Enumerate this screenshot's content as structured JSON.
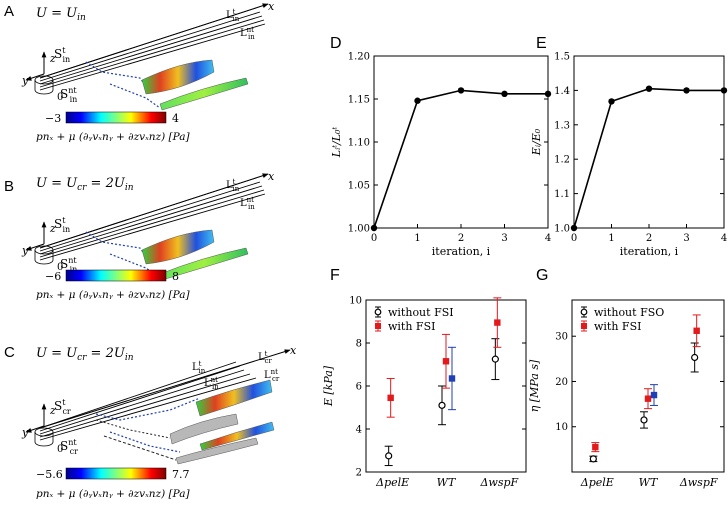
{
  "panels": {
    "A": {
      "letter": "A",
      "equation": "U = U",
      "equation_sub": "in",
      "label_top": "S",
      "label_top_sup": "t",
      "label_top_sub": "in",
      "label_bottom": "S",
      "label_bottom_sup": "nt",
      "label_bottom_sub": "in",
      "line_t": "L",
      "line_t_sup": "t",
      "line_t_sub": "in",
      "line_nt": "L",
      "line_nt_sup": "nt",
      "line_nt_sub": "in",
      "cbar_min": "−3",
      "cbar_max": "4"
    },
    "B": {
      "letter": "B",
      "equation": "U = U",
      "equation_sub": "cr",
      "equation_rest": " = 2U",
      "equation_rest_sub": "in",
      "label_top": "S",
      "label_top_sup": "t",
      "label_top_sub": "in",
      "label_bottom": "S",
      "label_bottom_sup": "nt",
      "label_bottom_sub": "in",
      "line_t": "L",
      "line_t_sup": "t",
      "line_t_sub": "in",
      "line_nt": "L",
      "line_nt_sup": "nt",
      "line_nt_sub": "in",
      "cbar_min": "−6",
      "cbar_max": "8"
    },
    "C": {
      "letter": "C",
      "equation": "U = U",
      "equation_sub": "cr",
      "equation_rest": " = 2U",
      "equation_rest_sub": "in",
      "label_top": "S",
      "label_top_sup": "t",
      "label_top_sub": "cr",
      "label_bottom": "S",
      "label_bottom_sup": "nt",
      "label_bottom_sub": "cr",
      "line_t_in": "L",
      "line_t_in_sup": "t",
      "line_t_in_sub": "in",
      "line_nt_in": "L",
      "line_nt_in_sup": "nt",
      "line_nt_in_sub": "in",
      "line_t_cr": "L",
      "line_t_cr_sup": "t",
      "line_t_cr_sub": "cr",
      "line_nt_cr": "L",
      "line_nt_cr_sup": "nt",
      "line_nt_cr_sub": "cr",
      "cbar_min": "−5.6",
      "cbar_max": "7.7"
    }
  },
  "axes_labels": {
    "x": "x",
    "y": "y",
    "z": "z",
    "origin": "0"
  },
  "cbar_caption": "pn",
  "cbar_caption_full": "pnₓ + μ (∂ᵧvₓnᵧ + ∂zvₓnz) [Pa]",
  "colors": {
    "line": "#000000",
    "red": "#e31a1c",
    "blue": "#1f3fb4",
    "black": "#000000"
  },
  "chart_data": [
    {
      "id": "D",
      "type": "line",
      "letter": "D",
      "ylabel": "L_i^t / L_0^t",
      "xlabel": "iteration, i",
      "x": [
        0,
        1,
        2,
        3,
        4
      ],
      "y": [
        1.0,
        1.148,
        1.16,
        1.156,
        1.156
      ],
      "xlim": [
        0,
        4
      ],
      "ylim": [
        1.0,
        1.2
      ],
      "xticks": [
        "0",
        "1",
        "2",
        "3",
        "4"
      ],
      "yticks": [
        "1.00",
        "1.05",
        "1.10",
        "1.15",
        "1.20"
      ]
    },
    {
      "id": "E",
      "type": "line",
      "letter": "E",
      "ylabel": "E_i / E_0",
      "xlabel": "iteration, i",
      "x": [
        0,
        1,
        2,
        3,
        4
      ],
      "y": [
        1.0,
        1.368,
        1.405,
        1.4,
        1.4
      ],
      "xlim": [
        0,
        4
      ],
      "ylim": [
        1.0,
        1.5
      ],
      "xticks": [
        "0",
        "1",
        "2",
        "3",
        "4"
      ],
      "yticks": [
        "1.0",
        "1.1",
        "1.2",
        "1.3",
        "1.4",
        "1.5"
      ]
    },
    {
      "id": "F",
      "type": "scatter",
      "letter": "F",
      "ylabel": "E [kPa]",
      "categories": [
        "ΔpelE",
        "WT",
        "ΔwspF"
      ],
      "ylim": [
        2,
        10
      ],
      "yticks": [
        "2",
        "4",
        "6",
        "8",
        "10"
      ],
      "legend": [
        "without FSI",
        "with FSI"
      ],
      "series": [
        {
          "name": "without FSI",
          "color": "#000000",
          "marker": "circle",
          "values": [
            2.75,
            5.1,
            7.25
          ],
          "err": [
            0.45,
            0.9,
            0.95
          ]
        },
        {
          "name": "with FSI",
          "color": "#e31a1c",
          "marker": "square",
          "values": [
            5.45,
            7.15,
            8.95
          ],
          "err": [
            0.9,
            1.25,
            1.15
          ]
        },
        {
          "name": "WT blue",
          "color": "#1f3fb4",
          "marker": "square",
          "values": [
            null,
            6.35,
            null
          ],
          "err": [
            0,
            1.45,
            0
          ]
        }
      ]
    },
    {
      "id": "G",
      "type": "scatter",
      "letter": "G",
      "ylabel": "η [MPa s]",
      "categories": [
        "ΔpelE",
        "WT",
        "ΔwspF"
      ],
      "ylim": [
        0,
        38
      ],
      "yticks": [
        "10",
        "20",
        "30"
      ],
      "legend": [
        "without FSO",
        "with FSI"
      ],
      "series": [
        {
          "name": "without FSO",
          "color": "#000000",
          "marker": "circle",
          "values": [
            2.9,
            11.5,
            25.3
          ],
          "err": [
            0.6,
            1.8,
            3.2
          ]
        },
        {
          "name": "with FSI",
          "color": "#e31a1c",
          "marker": "square",
          "values": [
            5.5,
            16.2,
            31.2
          ],
          "err": [
            1.0,
            2.2,
            3.5
          ]
        },
        {
          "name": "WT blue",
          "color": "#1f3fb4",
          "marker": "square",
          "values": [
            null,
            17.0,
            null
          ],
          "err": [
            0,
            2.3,
            0
          ]
        }
      ]
    }
  ]
}
